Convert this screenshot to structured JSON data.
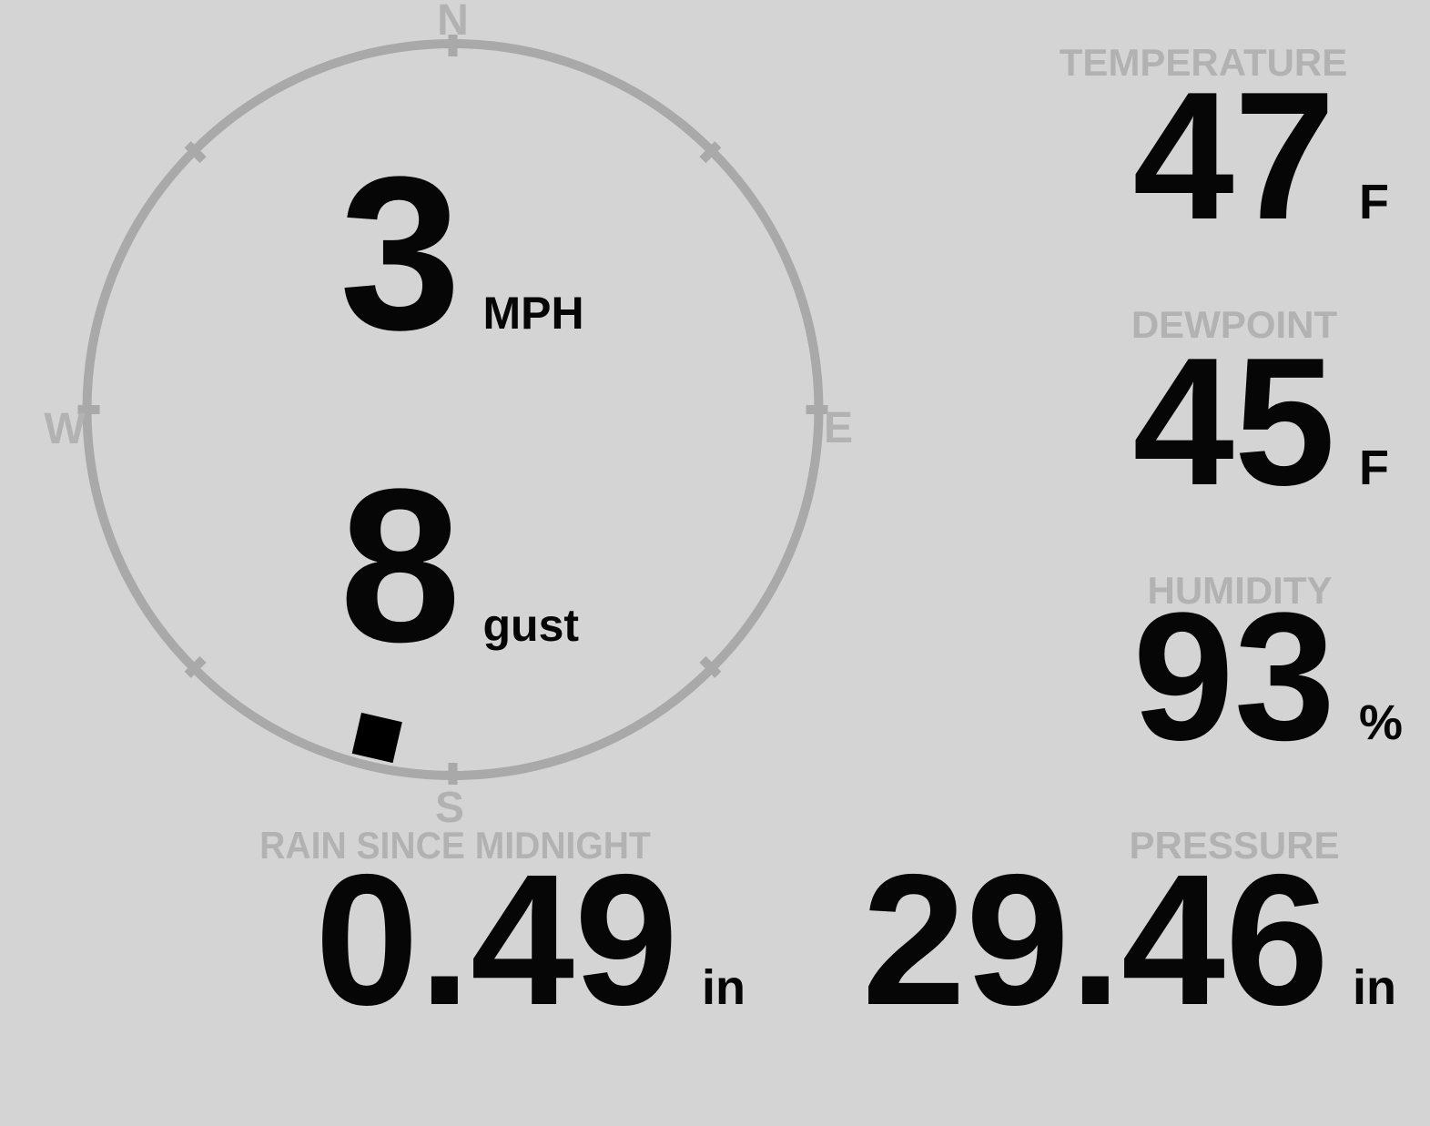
{
  "colors": {
    "background": "#d4d4d4",
    "dial": "#a9a9a9",
    "muted_text": "#b2b2b2",
    "value_text": "#060606",
    "marker": "#000000"
  },
  "compass": {
    "labels": {
      "north": "N",
      "east": "E",
      "south": "S",
      "west": "W"
    },
    "wind_speed": {
      "value": "3",
      "unit": "MPH"
    },
    "wind_gust": {
      "value": "8",
      "unit": "gust"
    },
    "wind_direction_deg": 193
  },
  "metrics": {
    "temperature": {
      "label": "TEMPERATURE",
      "value": "47",
      "unit": "F"
    },
    "dewpoint": {
      "label": "DEWPOINT",
      "value": "45",
      "unit": "F"
    },
    "humidity": {
      "label": "HUMIDITY",
      "value": "93",
      "unit": "%"
    },
    "rain_since_midnight": {
      "label": "RAIN SINCE MIDNIGHT",
      "value": "0.49",
      "unit": "in"
    },
    "pressure": {
      "label": "PRESSURE",
      "value": "29.46",
      "unit": "in"
    }
  }
}
